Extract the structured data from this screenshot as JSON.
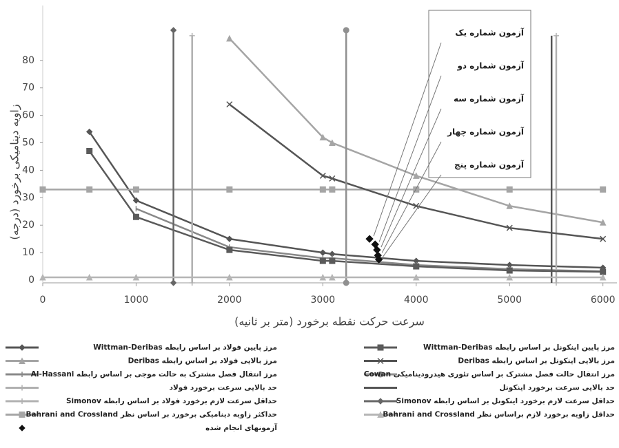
{
  "chart_data": {
    "type": "line",
    "x_label": "سرعت حرکت نقطه برخورد (متر بر ثانیه)",
    "y_label": "زاویه دینامیکی برخورد (درجه)",
    "xlim": [
      0,
      6150
    ],
    "ylim": [
      -1,
      100
    ],
    "xticks": [
      0,
      1000,
      2000,
      3000,
      4000,
      5000,
      6000
    ],
    "yticks": [
      0,
      10,
      20,
      30,
      40,
      50,
      60,
      70,
      80
    ],
    "series": [
      {
        "name": "مرز پایین فولاد بر اساس رابطه Wittman-Deribas",
        "color": "#555555",
        "marker": "diamond",
        "x": [
          500,
          1000,
          2000,
          3000,
          3100,
          4000,
          5000,
          6000
        ],
        "values": [
          54,
          29,
          15,
          10,
          9.5,
          7,
          5.5,
          4.5
        ]
      },
      {
        "name": "مرز بالایی فولاد بر اساس رابطه Deribas",
        "color": "#a5a5a5",
        "marker": "triangle",
        "x": [
          2000,
          3000,
          3100,
          4000,
          5000,
          6000
        ],
        "values": [
          88,
          52,
          50,
          38,
          27,
          21
        ]
      },
      {
        "name": "مرز انتقال فصل مشترک به حالت موجی بر اساس رابطه Al-Hassani",
        "color": "#888888",
        "marker": "tick",
        "x": [
          1000,
          2000,
          3000,
          3100,
          4000,
          5000,
          6000
        ],
        "values": [
          26,
          12,
          8,
          8,
          5.5,
          4,
          3.2
        ]
      },
      {
        "name": "حد بالایی سرعت برخورد فولاد",
        "color": "#b0b0b0",
        "marker": "plus",
        "x": [
          1600,
          1600
        ],
        "values": [
          -1,
          89
        ]
      },
      {
        "name": "حداقل سرعت  لازم برخورد فولاد بر اساس رابطه Simonov",
        "color": "#b0b0b0",
        "marker": "plus",
        "x": [
          5500,
          5500
        ],
        "values": [
          -1,
          89
        ]
      },
      {
        "name": "حداکثر زاویه دینامیکی برخورد بر اساس نظر Bahrani and Crossland",
        "color": "#a5a5a5",
        "marker": "square",
        "x": [
          0,
          500,
          1000,
          2000,
          3000,
          3100,
          4000,
          5000,
          6000
        ],
        "values": [
          33,
          33,
          33,
          33,
          33,
          33,
          33,
          33,
          33
        ]
      },
      {
        "name": "آزمونهای انجام شده",
        "color": "#111111",
        "marker": "diamond",
        "line": false,
        "x": [
          3500,
          3560,
          3580,
          3590,
          3600
        ],
        "values": [
          15,
          13,
          11,
          9,
          7.5
        ]
      },
      {
        "name": "مرز پایین اینکونل بر اساس رابطه Wittman-Deribas",
        "color": "#5a5a5a",
        "marker": "square",
        "x": [
          500,
          1000,
          2000,
          3000,
          3100,
          4000,
          5000,
          6000
        ],
        "values": [
          47,
          23,
          11,
          7,
          7,
          5,
          3.5,
          3
        ]
      },
      {
        "name": "مرز بالایی اینکونل بر اساس رابطه Deribas",
        "color": "#555555",
        "marker": "cross",
        "x": [
          2000,
          3000,
          3100,
          4000,
          5000,
          6000
        ],
        "values": [
          64,
          38,
          37,
          27,
          19,
          15
        ]
      },
      {
        "name": "مرز انتقال حالت فصل مشترک بر اساس تئوری هیدرودینامیکی Cowan",
        "color": "#909090",
        "marker": "circle",
        "x": [
          3250,
          3250
        ],
        "values": [
          -1,
          91
        ]
      },
      {
        "name": "حد بالایی سرعت برخورد اینکونل",
        "color": "#555555",
        "marker": "none",
        "x": [
          5450,
          5450
        ],
        "values": [
          -1,
          89
        ]
      },
      {
        "name": "حداقل سرعت لازم برخورد اینکونل بر اساس رابطه Simonov",
        "color": "#666666",
        "marker": "diamond",
        "x": [
          1400,
          1400
        ],
        "values": [
          -1,
          91
        ]
      },
      {
        "name": "حداقل زاویه برخورد لازم براساس نظر Bahrani and Crossland",
        "color": "#b5b5b5",
        "marker": "triangle",
        "x": [
          0,
          500,
          1000,
          2000,
          3000,
          3100,
          4000,
          5000,
          6000
        ],
        "values": [
          1,
          1,
          1,
          1,
          1,
          1,
          1,
          1,
          1
        ]
      }
    ],
    "annotations": [
      "آزمون شماره یک",
      "آزمون شماره دو",
      "آزمون شماره سه",
      "آزمون شماره چهار",
      "آزمون شماره پنج"
    ]
  }
}
